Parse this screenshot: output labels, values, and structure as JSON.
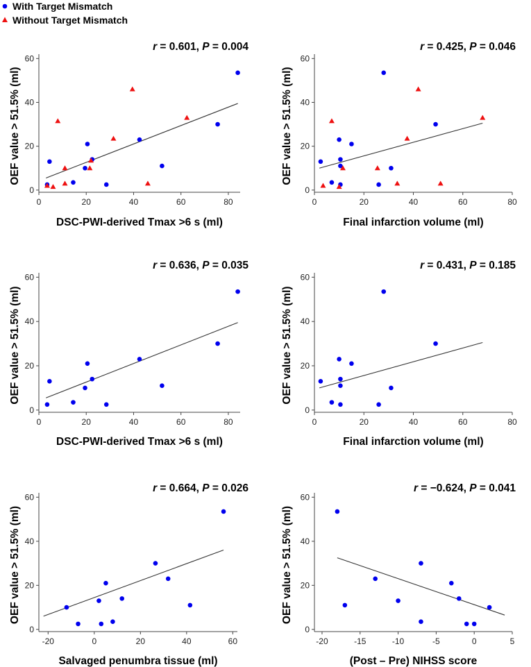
{
  "legend": [
    {
      "label": "With Target Mismatch",
      "marker": "circle",
      "color": "#0000ee"
    },
    {
      "label": "Without Target Mismatch",
      "marker": "triangle",
      "color": "#ee1111"
    }
  ],
  "chart_data": [
    {
      "type": "scatter",
      "stat": {
        "r_label": "r",
        "r_text": " = 0.601, ",
        "p_label": "P",
        "p_text": " = 0.004"
      },
      "xlabel": "DSC-PWI-derived Tmax >6 s (ml)",
      "ylabel": "OEF value > 51.5% (ml)",
      "xlim": [
        0,
        85
      ],
      "ylim": [
        -1,
        62
      ],
      "xticks": [
        0,
        20,
        40,
        60,
        80
      ],
      "yticks": [
        0,
        20,
        40,
        60
      ],
      "fit": {
        "x": [
          3,
          84
        ],
        "y": [
          5.5,
          39.5
        ]
      },
      "series": [
        {
          "name": "With Target Mismatch",
          "marker": "circle",
          "color": "#0000ee",
          "x": [
            3.5,
            4.5,
            14.5,
            19.5,
            20.5,
            22.5,
            28.5,
            42.5,
            52,
            75.5,
            84
          ],
          "y": [
            2.5,
            13,
            3.5,
            10,
            21,
            14,
            2.5,
            23,
            11,
            30,
            53.5
          ]
        },
        {
          "name": "Without Target Mismatch",
          "marker": "triangle",
          "color": "#ee1111",
          "x": [
            3.5,
            6,
            8,
            11,
            11,
            21.5,
            22,
            31.5,
            39.5,
            46,
            62.5
          ],
          "y": [
            2,
            1.5,
            31.5,
            3,
            10,
            10,
            13.5,
            23.5,
            46,
            3,
            33
          ]
        }
      ]
    },
    {
      "type": "scatter",
      "stat": {
        "r_label": "r",
        "r_text": " = 0.425, ",
        "p_label": "P",
        "p_text": " = 0.046"
      },
      "xlabel": "Final infarction volume (ml)",
      "ylabel": "OEF value > 51.5% (ml)",
      "xlim": [
        0,
        80
      ],
      "ylim": [
        -1,
        62
      ],
      "xticks": [
        0,
        20,
        40,
        60,
        80
      ],
      "yticks": [
        0,
        20,
        40,
        60
      ],
      "fit": {
        "x": [
          2,
          68
        ],
        "y": [
          10,
          30.5
        ]
      },
      "series": [
        {
          "name": "With Target Mismatch",
          "marker": "circle",
          "color": "#0000ee",
          "x": [
            2.5,
            7,
            10,
            10.5,
            10.5,
            10.5,
            15,
            26,
            28,
            31,
            49
          ],
          "y": [
            13,
            3.5,
            23,
            14,
            11,
            2.5,
            21,
            2.5,
            53.5,
            10,
            30
          ]
        },
        {
          "name": "Without Target Mismatch",
          "marker": "triangle",
          "color": "#ee1111",
          "x": [
            3.5,
            7,
            10,
            11.5,
            25.5,
            33.5,
            37.5,
            42,
            51,
            68
          ],
          "y": [
            2,
            31.5,
            1.5,
            10,
            10,
            3,
            23.5,
            46,
            3,
            33
          ]
        }
      ]
    },
    {
      "type": "scatter",
      "stat": {
        "r_label": "r",
        "r_text": " = 0.636, ",
        "p_label": "P",
        "p_text": " = 0.035"
      },
      "xlabel": "DSC-PWI-derived Tmax >6 s (ml)",
      "ylabel": "OEF value > 51.5% (ml)",
      "xlim": [
        0,
        85
      ],
      "ylim": [
        -1,
        62
      ],
      "xticks": [
        0,
        20,
        40,
        60,
        80
      ],
      "yticks": [
        0,
        20,
        40,
        60
      ],
      "fit": {
        "x": [
          3,
          84
        ],
        "y": [
          5.5,
          39.5
        ]
      },
      "series": [
        {
          "name": "With Target Mismatch",
          "marker": "circle",
          "color": "#0000ee",
          "x": [
            3.5,
            4.5,
            14.5,
            19.5,
            20.5,
            22.5,
            28.5,
            42.5,
            52,
            75.5,
            84
          ],
          "y": [
            2.5,
            13,
            3.5,
            10,
            21,
            14,
            2.5,
            23,
            11,
            30,
            53.5
          ]
        }
      ]
    },
    {
      "type": "scatter",
      "stat": {
        "r_label": "r",
        "r_text": " = 0.431, ",
        "p_label": "P",
        "p_text": " = 0.185"
      },
      "xlabel": "Final infarction volume (ml)",
      "ylabel": "OEF value > 51.5% (ml)",
      "xlim": [
        0,
        80
      ],
      "ylim": [
        -1,
        62
      ],
      "xticks": [
        0,
        20,
        40,
        60,
        80
      ],
      "yticks": [
        0,
        20,
        40,
        60
      ],
      "fit": {
        "x": [
          2,
          68
        ],
        "y": [
          10,
          30.5
        ]
      },
      "series": [
        {
          "name": "With Target Mismatch",
          "marker": "circle",
          "color": "#0000ee",
          "x": [
            2.5,
            7,
            10,
            10.5,
            10.5,
            10.5,
            15,
            26,
            28,
            31,
            49
          ],
          "y": [
            13,
            3.5,
            23,
            14,
            11,
            2.5,
            21,
            2.5,
            53.5,
            10,
            30
          ]
        }
      ]
    },
    {
      "type": "scatter",
      "stat": {
        "r_label": "r",
        "r_text": " = 0.664, ",
        "p_label": "P",
        "p_text": " = 0.026"
      },
      "xlabel": "Salvaged penumbra tissue (ml)",
      "ylabel": "OEF value > 51.5% (ml)",
      "xlim": [
        -24,
        62
      ],
      "ylim": [
        -1,
        62
      ],
      "xticks": [
        -20,
        0,
        20,
        40,
        60
      ],
      "yticks": [
        0,
        20,
        40,
        60
      ],
      "fit": {
        "x": [
          -22,
          56
        ],
        "y": [
          6,
          36
        ]
      },
      "series": [
        {
          "name": "With Target Mismatch",
          "marker": "circle",
          "color": "#0000ee",
          "x": [
            -12,
            -7,
            2,
            3,
            5,
            8,
            12,
            26.5,
            32,
            41.5,
            56
          ],
          "y": [
            10,
            2.5,
            13,
            2.5,
            21,
            3.5,
            14,
            30,
            23,
            11,
            53.5
          ]
        }
      ]
    },
    {
      "type": "scatter",
      "stat": {
        "r_label": "r",
        "r_text": " = −0.624, ",
        "p_label": "P",
        "p_text": " = 0.041"
      },
      "xlabel": "(Post – Pre) NIHSS score",
      "ylabel": "OEF value > 51.5% (ml)",
      "xlim": [
        -21,
        5
      ],
      "ylim": [
        -1,
        62
      ],
      "xticks": [
        -20,
        -15,
        -10,
        -5,
        0,
        5
      ],
      "yticks": [
        0,
        20,
        40,
        60
      ],
      "fit": {
        "x": [
          -18,
          4
        ],
        "y": [
          32.5,
          6.5
        ]
      },
      "series": [
        {
          "name": "With Target Mismatch",
          "marker": "circle",
          "color": "#0000ee",
          "x": [
            -18,
            -17,
            -13,
            -10,
            -7,
            -7,
            -3,
            -2,
            -1,
            0,
            2
          ],
          "y": [
            53.5,
            11,
            23,
            13,
            30,
            3.5,
            21,
            14,
            2.5,
            2.5,
            10
          ]
        }
      ]
    }
  ]
}
